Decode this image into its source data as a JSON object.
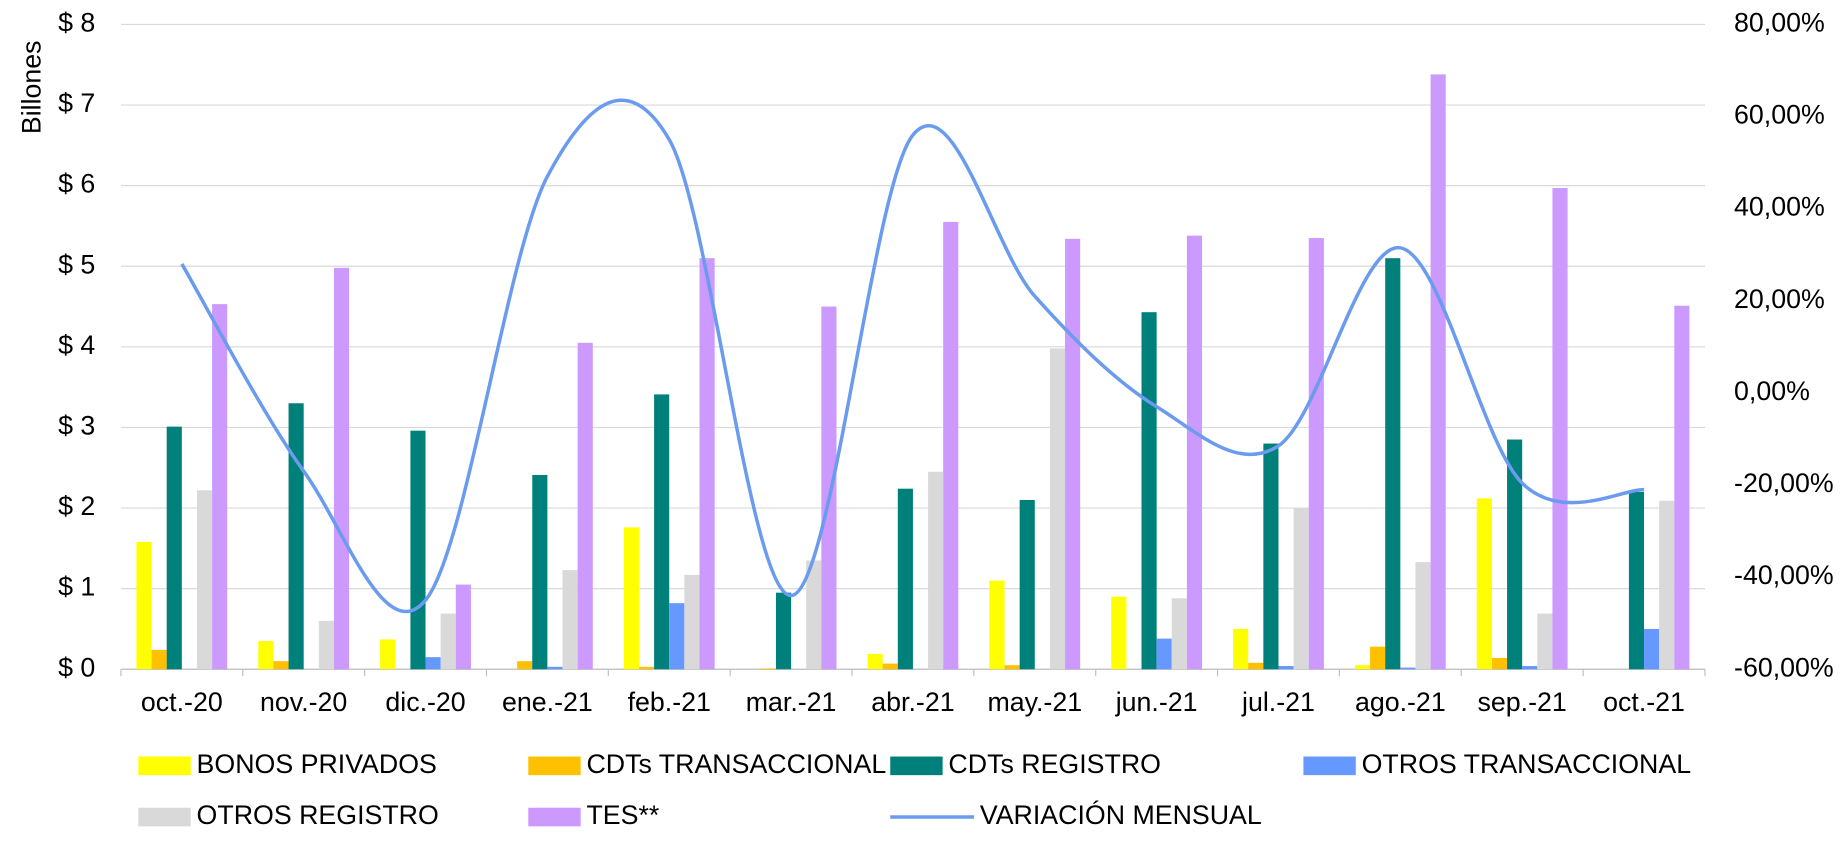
{
  "chart_data": {
    "type": "bar",
    "y_label": "Billones",
    "categories": [
      "oct.-20",
      "nov.-20",
      "dic.-20",
      "ene.-21",
      "feb.-21",
      "mar.-21",
      "abr.-21",
      "may.-21",
      "jun.-21",
      "jul.-21",
      "ago.-21",
      "sep.-21",
      "oct.-21"
    ],
    "series": [
      {
        "name": "BONOS PRIVADOS",
        "color": "#ffff00",
        "values": [
          1.58,
          0.35,
          0.37,
          0,
          1.76,
          0,
          0.19,
          1.1,
          0.9,
          0.5,
          0.05,
          2.12,
          0
        ]
      },
      {
        "name": "CDTs TRANSACCIONAL",
        "color": "#ffc000",
        "values": [
          0.24,
          0.1,
          0,
          0.1,
          0.03,
          0.01,
          0.07,
          0.05,
          0,
          0.08,
          0.28,
          0.14,
          0
        ]
      },
      {
        "name": "CDTs REGISTRO",
        "color": "#00807a",
        "values": [
          3.01,
          3.3,
          2.96,
          2.41,
          3.41,
          0.95,
          2.24,
          2.1,
          4.43,
          2.8,
          5.1,
          2.85,
          2.2
        ]
      },
      {
        "name": "OTROS TRANSACCIONAL",
        "color": "#6699ff",
        "values": [
          0,
          0,
          0.15,
          0.03,
          0.82,
          0,
          0,
          0,
          0.38,
          0.04,
          0.02,
          0.04,
          0.5
        ]
      },
      {
        "name": "OTROS REGISTRO",
        "color": "#d9d9d9",
        "values": [
          2.22,
          0.6,
          0.69,
          1.23,
          1.17,
          1.35,
          2.45,
          3.98,
          0.88,
          2.0,
          1.33,
          0.69,
          2.09
        ]
      },
      {
        "name": "TES**",
        "color": "#cc99ff",
        "values": [
          4.53,
          4.98,
          1.05,
          4.05,
          5.1,
          4.5,
          5.55,
          5.34,
          5.38,
          5.35,
          7.38,
          5.97,
          4.51
        ]
      },
      {
        "name": "VARIACIÓN MENSUAL",
        "color": "#6b9bef",
        "type": "line",
        "axis": "y2",
        "values": [
          28,
          -17,
          -45,
          47,
          55,
          -44,
          56,
          21,
          -3,
          -11.5,
          31.5,
          -19.6,
          -21
        ]
      }
    ],
    "ylim": [
      0,
      8
    ],
    "yticks": [
      {
        "value": 0,
        "label": "$ 0"
      },
      {
        "value": 1,
        "label": "$ 1"
      },
      {
        "value": 2,
        "label": "$ 2"
      },
      {
        "value": 3,
        "label": "$ 3"
      },
      {
        "value": 4,
        "label": "$ 4"
      },
      {
        "value": 5,
        "label": "$ 5"
      },
      {
        "value": 6,
        "label": "$ 6"
      },
      {
        "value": 7,
        "label": "$ 7"
      },
      {
        "value": 8,
        "label": "$ 8"
      }
    ],
    "y2lim": [
      -60,
      80
    ],
    "y2ticks": [
      {
        "value": -60,
        "label": "-60,00%"
      },
      {
        "value": -40,
        "label": "-40,00%"
      },
      {
        "value": -20,
        "label": "-20,00%"
      },
      {
        "value": 0,
        "label": "0,00%"
      },
      {
        "value": 20,
        "label": "20,00%"
      },
      {
        "value": 40,
        "label": "40,00%"
      },
      {
        "value": 60,
        "label": "60,00%"
      },
      {
        "value": 80,
        "label": "80,00%"
      }
    ],
    "grid": true
  }
}
